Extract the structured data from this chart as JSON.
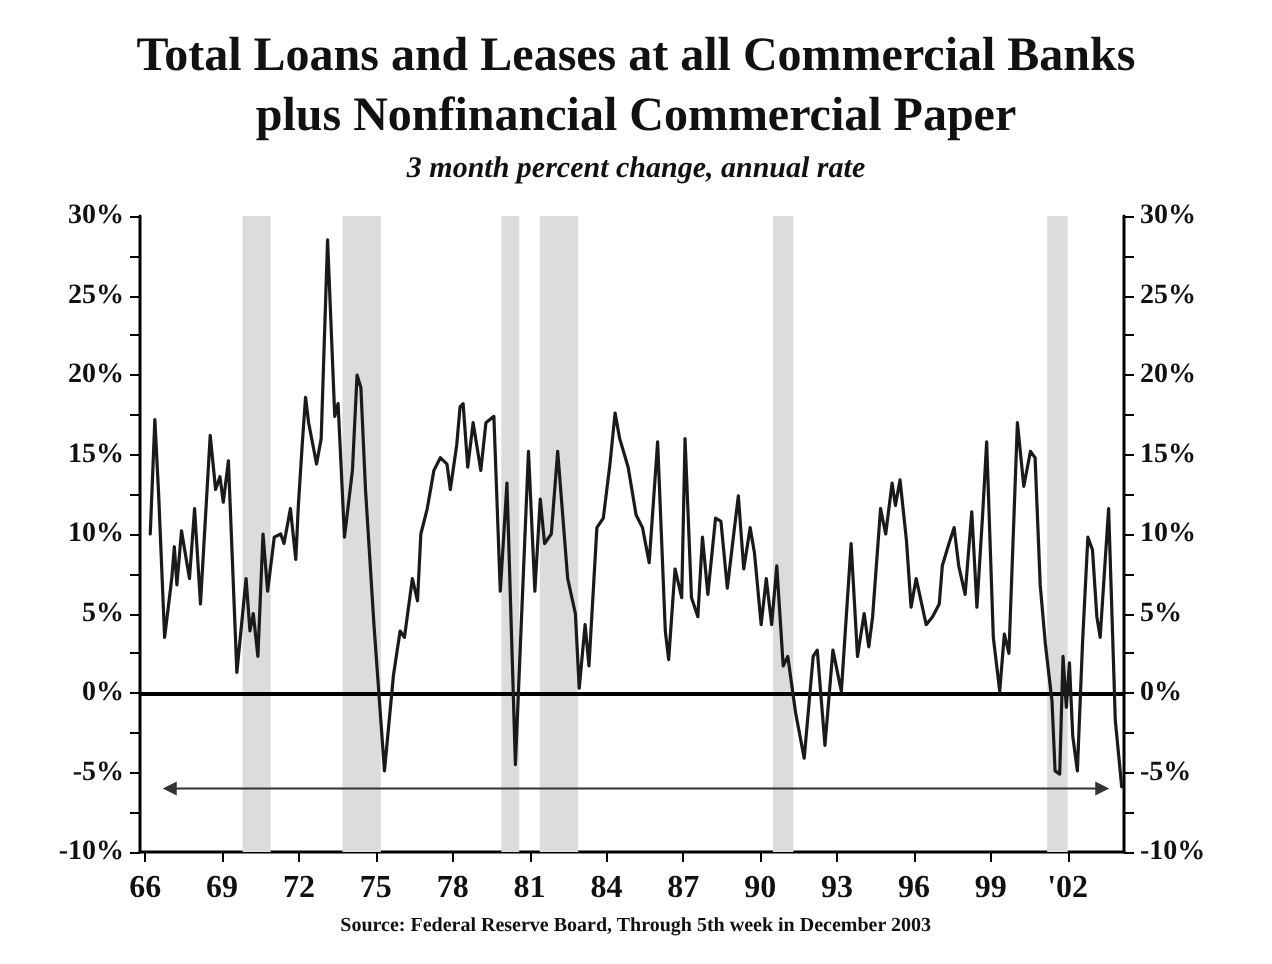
{
  "chart_data": {
    "type": "line",
    "title": "Total Loans and Leases at all Commercial Banks\nplus Nonfinancial Commercial Paper",
    "subtitle": "3 month percent change, annual rate",
    "annotations": [
      "Source: Federal Reserve Board, Through 5th week in December 2003"
    ],
    "xlim": [
      1965.8,
      2004.2
    ],
    "xticks": [
      {
        "value": 1966,
        "label": "66"
      },
      {
        "value": 1969,
        "label": "69"
      },
      {
        "value": 1972,
        "label": "72"
      },
      {
        "value": 1975,
        "label": "75"
      },
      {
        "value": 1978,
        "label": "78"
      },
      {
        "value": 1981,
        "label": "81"
      },
      {
        "value": 1984,
        "label": "84"
      },
      {
        "value": 1987,
        "label": "87"
      },
      {
        "value": 1990,
        "label": "90"
      },
      {
        "value": 1993,
        "label": "93"
      },
      {
        "value": 1996,
        "label": "96"
      },
      {
        "value": 1999,
        "label": "99"
      },
      {
        "value": 2002,
        "label": "'02"
      }
    ],
    "ylim": [
      -10,
      30
    ],
    "yticks": [
      {
        "value": -10,
        "label": "-10%"
      },
      {
        "value": -7.5,
        "label": null
      },
      {
        "value": -5,
        "label": "-5%"
      },
      {
        "value": -2.5,
        "label": null
      },
      {
        "value": 0,
        "label": "0%"
      },
      {
        "value": 2.5,
        "label": null
      },
      {
        "value": 5,
        "label": "5%"
      },
      {
        "value": 7.5,
        "label": null
      },
      {
        "value": 10,
        "label": "10%"
      },
      {
        "value": 12.5,
        "label": null
      },
      {
        "value": 15,
        "label": "15%"
      },
      {
        "value": 17.5,
        "label": null
      },
      {
        "value": 20,
        "label": "20%"
      },
      {
        "value": 22.5,
        "label": null
      },
      {
        "value": 25,
        "label": "25%"
      },
      {
        "value": 27.5,
        "label": null
      },
      {
        "value": 30,
        "label": "30%"
      }
    ],
    "y2lim": [
      -10,
      30
    ],
    "y2ticks": [
      {
        "value": -10,
        "label": "-10%"
      },
      {
        "value": -7.5,
        "label": null
      },
      {
        "value": -5,
        "label": "-5%"
      },
      {
        "value": -2.5,
        "label": null
      },
      {
        "value": 0,
        "label": "0%"
      },
      {
        "value": 2.5,
        "label": null
      },
      {
        "value": 5,
        "label": "5%"
      },
      {
        "value": 7.5,
        "label": null
      },
      {
        "value": 10,
        "label": "10%"
      },
      {
        "value": 12.5,
        "label": null
      },
      {
        "value": 15,
        "label": "15%"
      },
      {
        "value": 17.5,
        "label": null
      },
      {
        "value": 20,
        "label": "20%"
      },
      {
        "value": 22.5,
        "label": null
      },
      {
        "value": 25,
        "label": "25%"
      },
      {
        "value": 27.5,
        "label": null
      },
      {
        "value": 30,
        "label": "30%"
      }
    ],
    "grid": false,
    "marker": "none",
    "line_style": "solid",
    "ref_lines": [
      {
        "axis": "y",
        "value": 0,
        "color": "#000000"
      }
    ],
    "bands": [
      {
        "axis": "x",
        "from": 1969.8,
        "to": 1970.9,
        "color": "#dcdcdc"
      },
      {
        "axis": "x",
        "from": 1973.7,
        "to": 1975.2,
        "color": "#dcdcdc"
      },
      {
        "axis": "x",
        "from": 1979.9,
        "to": 1980.6,
        "color": "#dcdcdc"
      },
      {
        "axis": "x",
        "from": 1981.4,
        "to": 1982.9,
        "color": "#dcdcdc"
      },
      {
        "axis": "x",
        "from": 1990.5,
        "to": 1991.3,
        "color": "#dcdcdc"
      },
      {
        "axis": "x",
        "from": 2001.2,
        "to": 2002.0,
        "color": "#dcdcdc"
      }
    ],
    "series": [
      {
        "color": "#1a1a1a",
        "x": [
          1966.2,
          1966.38,
          1966.53,
          1966.76,
          1967.04,
          1967.14,
          1967.24,
          1967.42,
          1967.73,
          1967.93,
          1968.16,
          1968.54,
          1968.75,
          1968.92,
          1969.05,
          1969.25,
          1969.58,
          1969.94,
          1970.09,
          1970.22,
          1970.4,
          1970.6,
          1970.78,
          1971.04,
          1971.29,
          1971.42,
          1971.67,
          1971.88,
          1971.98,
          1972.13,
          1972.26,
          1972.38,
          1972.69,
          1972.87,
          1973.12,
          1973.4,
          1973.53,
          1973.78,
          1974.09,
          1974.27,
          1974.42,
          1974.6,
          1974.93,
          1975.34,
          1975.69,
          1975.95,
          1976.12,
          1976.43,
          1976.63,
          1976.76,
          1977.01,
          1977.27,
          1977.52,
          1977.78,
          1977.91,
          1978.16,
          1978.29,
          1978.41,
          1978.59,
          1978.8,
          1979.1,
          1979.3,
          1979.61,
          1979.86,
          1980.12,
          1980.45,
          1980.96,
          1981.21,
          1981.42,
          1981.59,
          1981.85,
          1982.1,
          1982.49,
          1982.79,
          1982.94,
          1983.17,
          1983.32,
          1983.63,
          1983.88,
          1984.14,
          1984.34,
          1984.52,
          1984.85,
          1985.16,
          1985.41,
          1985.67,
          1986.0,
          1986.3,
          1986.43,
          1986.68,
          1986.94,
          1987.07,
          1987.32,
          1987.57,
          1987.75,
          1987.96,
          1988.26,
          1988.47,
          1988.72,
          1988.97,
          1989.15,
          1989.36,
          1989.61,
          1989.78,
          1990.04,
          1990.24,
          1990.45,
          1990.65,
          1990.9,
          1991.08,
          1991.39,
          1991.72,
          1992.07,
          1992.23,
          1992.53,
          1992.84,
          1993.17,
          1993.55,
          1993.8,
          1994.06,
          1994.24,
          1994.39,
          1994.7,
          1994.9,
          1995.15,
          1995.28,
          1995.46,
          1995.71,
          1995.89,
          1996.09,
          1996.48,
          1996.73,
          1996.99,
          1997.11,
          1997.37,
          1997.57,
          1997.75,
          1998.0,
          1998.26,
          1998.46,
          1998.69,
          1998.84,
          1999.1,
          1999.35,
          1999.53,
          1999.71,
          2000.04,
          2000.29,
          2000.55,
          2000.73,
          2000.93,
          2001.13,
          2001.39,
          2001.51,
          2001.69,
          2001.82,
          2001.95,
          2002.07,
          2002.2,
          2002.38,
          2002.58,
          2002.79,
          2002.97,
          2003.14,
          2003.27,
          2003.42,
          2003.6,
          2003.86,
          2004.11
        ],
        "values": [
          10.0,
          17.2,
          12.4,
          3.5,
          7.2,
          9.2,
          6.8,
          10.2,
          7.2,
          11.6,
          5.6,
          16.2,
          12.8,
          13.6,
          12.0,
          14.6,
          1.3,
          7.2,
          3.9,
          5.0,
          2.3,
          10.0,
          6.4,
          9.8,
          10.0,
          9.4,
          11.6,
          8.4,
          11.8,
          15.6,
          18.6,
          17.0,
          14.4,
          16.0,
          28.5,
          17.4,
          18.2,
          9.8,
          14.0,
          20.0,
          19.2,
          12.8,
          4.3,
          -4.9,
          1.1,
          3.9,
          3.5,
          7.2,
          5.8,
          10.0,
          11.6,
          14.0,
          14.8,
          14.4,
          12.8,
          15.6,
          18.0,
          18.2,
          14.2,
          17.0,
          14.0,
          17.0,
          17.4,
          6.4,
          13.2,
          -4.5,
          15.2,
          6.4,
          12.2,
          9.4,
          10.0,
          15.2,
          7.2,
          5.0,
          0.3,
          4.3,
          1.7,
          10.4,
          11.0,
          14.4,
          17.6,
          16.0,
          14.2,
          11.2,
          10.4,
          8.2,
          15.8,
          3.9,
          2.1,
          7.8,
          6.0,
          16.0,
          6.0,
          4.8,
          9.8,
          6.2,
          11.0,
          10.8,
          6.6,
          10.0,
          12.4,
          7.8,
          10.4,
          8.8,
          4.3,
          7.2,
          4.3,
          8.0,
          1.7,
          2.3,
          -1.3,
          -4.1,
          2.3,
          2.7,
          -3.3,
          2.7,
          0.1,
          9.4,
          2.3,
          5.0,
          2.9,
          4.8,
          11.6,
          10.0,
          13.2,
          11.8,
          13.4,
          9.6,
          5.4,
          7.2,
          4.3,
          4.8,
          5.6,
          8.0,
          9.4,
          10.4,
          8.0,
          6.2,
          11.4,
          5.4,
          11.4,
          15.8,
          3.5,
          0.1,
          3.7,
          2.5,
          17.0,
          13.0,
          15.2,
          14.8,
          6.8,
          3.1,
          -0.5,
          -4.9,
          -5.1,
          2.3,
          -0.9,
          1.9,
          -2.7,
          -4.9,
          3.1,
          9.8,
          9.0,
          4.8,
          3.5,
          7.2,
          11.6,
          -1.7,
          -5.9
        ]
      },
      {
        "type": "line",
        "color": "#333333",
        "marker": "triangle",
        "x": [
          1966.96,
          2003.35
        ],
        "values": [
          -6,
          -6
        ]
      }
    ]
  }
}
